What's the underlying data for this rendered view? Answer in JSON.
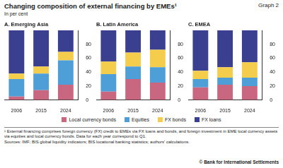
{
  "header": {
    "title": "Changing composition of external financing by EMEs¹",
    "graph_label": "Graph 2",
    "subtitle": "In per cent"
  },
  "chart_data": [
    {
      "type": "bar",
      "title": "A. Emerging Asia",
      "categories": [
        "2006",
        "2015",
        "2024"
      ],
      "stacked": true,
      "grid": false,
      "ylim": [
        0,
        100
      ],
      "yticks": [
        0,
        20,
        40,
        60,
        80
      ],
      "series": [
        {
          "name": "Local currency bonds",
          "color": "#c8677f",
          "values": [
            5,
            14,
            22
          ]
        },
        {
          "name": "Equities",
          "color": "#4e9fd8",
          "values": [
            25,
            24,
            35
          ]
        },
        {
          "name": "FX bonds",
          "color": "#f3cd4b",
          "values": [
            8,
            10,
            12
          ]
        },
        {
          "name": "FX loans",
          "color": "#3a3f8f",
          "values": [
            62,
            52,
            31
          ]
        }
      ]
    },
    {
      "type": "bar",
      "title": "B. Latin America",
      "categories": [
        "2006",
        "2015",
        "2024"
      ],
      "stacked": true,
      "grid": false,
      "ylim": [
        0,
        100
      ],
      "yticks": [
        0,
        20,
        40,
        60,
        80
      ],
      "series": [
        {
          "name": "Local currency bonds",
          "color": "#c8677f",
          "values": [
            12,
            30,
            25
          ]
        },
        {
          "name": "Equities",
          "color": "#4e9fd8",
          "values": [
            25,
            18,
            22
          ]
        },
        {
          "name": "FX bonds",
          "color": "#f3cd4b",
          "values": [
            18,
            20,
            25
          ]
        },
        {
          "name": "FX loans",
          "color": "#3a3f8f",
          "values": [
            45,
            32,
            28
          ]
        }
      ]
    },
    {
      "type": "bar",
      "title": "C. EMEA",
      "categories": [
        "2006",
        "2015",
        "2024"
      ],
      "stacked": true,
      "grid": false,
      "ylim": [
        0,
        100
      ],
      "yticks": [
        0,
        20,
        40,
        60,
        80
      ],
      "series": [
        {
          "name": "Local currency bonds",
          "color": "#c8677f",
          "values": [
            18,
            22,
            20
          ]
        },
        {
          "name": "Equities",
          "color": "#4e9fd8",
          "values": [
            12,
            10,
            12
          ]
        },
        {
          "name": "FX bonds",
          "color": "#f3cd4b",
          "values": [
            12,
            15,
            22
          ]
        },
        {
          "name": "FX loans",
          "color": "#3a3f8f",
          "values": [
            58,
            53,
            46
          ]
        }
      ]
    }
  ],
  "footer": {
    "footnote": "¹ External financing comprises foreign currency (FX) credit to EMEs via FX loans and bonds, and foreign investment in EME local currency assets via equities and local currency bonds. Data for each year correspond to Q1.",
    "sources": "Sources: IMF; BIS global liquidity indicators; BIS locational banking statistics; authors' calculations.",
    "copyright": "© Bank for International Settlements"
  }
}
